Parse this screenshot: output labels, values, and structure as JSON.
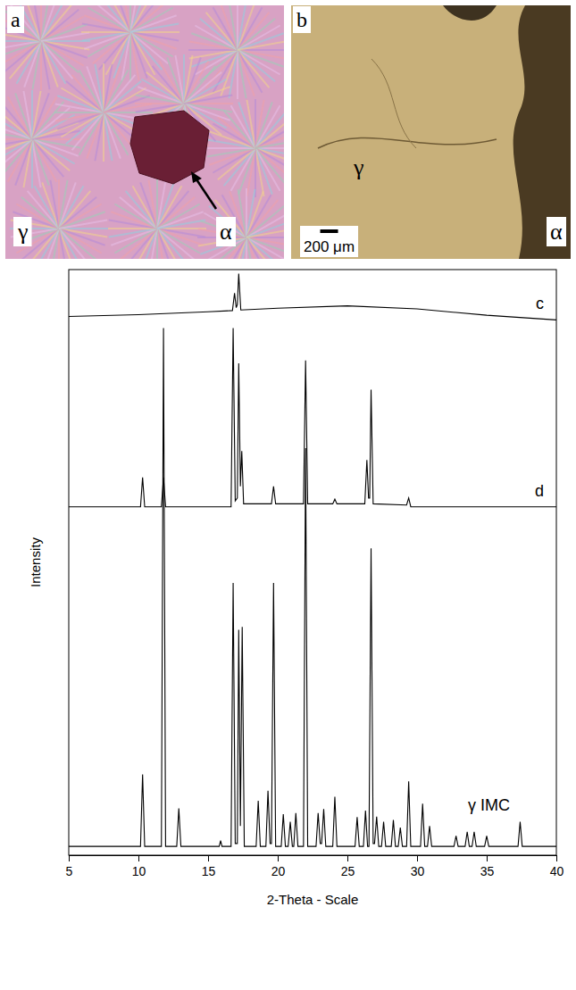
{
  "images": [
    {
      "letter": "a",
      "labels": [
        "γ",
        "α"
      ]
    },
    {
      "letter": "b",
      "labels": [
        "γ",
        "α"
      ],
      "scale_bar": "200 μm"
    }
  ],
  "chart_data": {
    "type": "line",
    "x_label": "2-Theta - Scale",
    "y_label": "Intensity",
    "xlim": [
      5,
      40
    ],
    "xticks": [
      5,
      10,
      15,
      20,
      25,
      30,
      35,
      40
    ],
    "ylim": [
      0,
      100
    ],
    "tick_labels": "x",
    "grid": false,
    "series": [
      {
        "name": "c",
        "color": "#000000",
        "x": [
          5,
          10,
          15,
          16.75,
          16.9,
          17.02,
          17.1,
          17.2,
          17.35,
          20,
          25,
          30,
          35,
          40
        ],
        "values": [
          92,
          92.3,
          92.8,
          93,
          96,
          93.5,
          94,
          99.3,
          93.1,
          93.4,
          93.8,
          93.3,
          92.2,
          91.4
        ]
      },
      {
        "name": "d",
        "color": "#000000",
        "x": [
          5,
          10.15,
          10.3,
          10.45,
          11.65,
          11.8,
          11.95,
          16.65,
          16.8,
          16.95,
          17.1,
          17.2,
          17.32,
          17.42,
          17.55,
          19.55,
          19.7,
          19.85,
          21.85,
          22.0,
          22.15,
          23.95,
          24.1,
          24.25,
          26.25,
          26.4,
          26.52,
          26.6,
          26.7,
          26.85,
          29.25,
          29.4,
          29.55,
          40
        ],
        "values": [
          59.5,
          59.5,
          64.5,
          59.5,
          59.5,
          64.5,
          59.5,
          59.5,
          90,
          60.5,
          61,
          84,
          63,
          69,
          60,
          60,
          63,
          60,
          60,
          84.5,
          60,
          60,
          60.8,
          60,
          60,
          67.5,
          61,
          61,
          79.5,
          60,
          59.8,
          61,
          59.5,
          59.5
        ]
      },
      {
        "name": "γ IMC",
        "color": "#000000",
        "x": [
          5,
          10.15,
          10.3,
          10.45,
          11.65,
          11.8,
          11.95,
          12.75,
          12.9,
          13.05,
          15.8,
          15.9,
          16.0,
          16.65,
          16.8,
          16.95,
          17.1,
          17.2,
          17.32,
          17.45,
          17.6,
          18.45,
          18.6,
          18.75,
          19.15,
          19.3,
          19.45,
          19.55,
          19.7,
          19.85,
          20.25,
          20.4,
          20.55,
          20.75,
          20.9,
          21.05,
          21.15,
          21.3,
          21.45,
          21.85,
          22.0,
          22.15,
          22.75,
          22.9,
          23.05,
          23.15,
          23.3,
          23.45,
          23.95,
          24.1,
          24.25,
          25.55,
          25.7,
          25.85,
          26.15,
          26.3,
          26.45,
          26.55,
          26.7,
          26.85,
          26.95,
          27.1,
          27.25,
          27.45,
          27.6,
          27.75,
          28.15,
          28.3,
          28.45,
          28.65,
          28.8,
          28.95,
          29.25,
          29.4,
          29.55,
          30.25,
          30.4,
          30.55,
          30.75,
          30.9,
          31.05,
          32.65,
          32.8,
          32.95,
          33.45,
          33.6,
          33.75,
          33.95,
          34.1,
          34.25,
          34.85,
          35.0,
          35.15,
          37.25,
          37.4,
          37.55,
          40
        ],
        "values": [
          1.5,
          1.5,
          13.8,
          1.5,
          1.5,
          90,
          1.5,
          1.5,
          8,
          1.5,
          1.5,
          2.5,
          1.5,
          1.5,
          46.5,
          2,
          2,
          38.5,
          5,
          39,
          1.5,
          1.5,
          9.3,
          1.5,
          1.5,
          11,
          2,
          2,
          46.5,
          1.5,
          1.5,
          7,
          1.5,
          1.5,
          5.7,
          1.5,
          1.5,
          7.2,
          1.5,
          1.5,
          69.5,
          1.5,
          1.5,
          7.2,
          2,
          2,
          7.9,
          1.5,
          1.5,
          10,
          1.5,
          1.5,
          6.5,
          1.5,
          1.5,
          7.6,
          1.5,
          1.5,
          52.4,
          2,
          2,
          6.6,
          1.5,
          1.5,
          5.7,
          1.5,
          1.5,
          6,
          1.5,
          1.5,
          4.7,
          1.5,
          1.5,
          12.6,
          1.5,
          1.5,
          8.8,
          1.5,
          1.5,
          5,
          1.5,
          1.5,
          3.3,
          1.5,
          1.5,
          4,
          1.5,
          1.5,
          4,
          1.5,
          1.5,
          3.3,
          1.5,
          1.5,
          5.7,
          1.5,
          1.5
        ]
      }
    ]
  }
}
